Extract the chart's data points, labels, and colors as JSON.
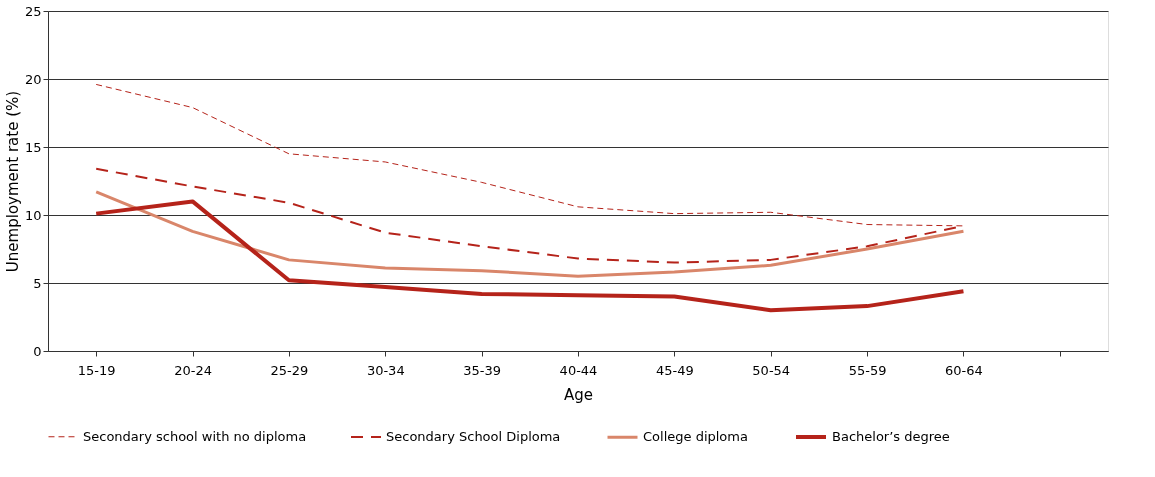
{
  "chart_data": {
    "type": "line",
    "xlabel": "Age",
    "ylabel": "Unemployment rate (%)",
    "categories": [
      "15-19",
      "20-24",
      "25-29",
      "30-34",
      "35-39",
      "40-44",
      "45-49",
      "50-54",
      "55-59",
      "60-64",
      null
    ],
    "series": [
      {
        "name": "Secondary school with no diploma",
        "color": "#b5231a",
        "line_style": "dashed",
        "values": [
          19.6,
          17.9,
          14.5,
          13.9,
          12.4,
          10.6,
          10.1,
          10.2,
          9.3,
          9.2,
          null
        ]
      },
      {
        "name": "Secondary School Diploma",
        "color": "#b5231a",
        "line_style": "dashed",
        "values": [
          13.4,
          12.1,
          10.9,
          8.7,
          7.7,
          6.8,
          6.5,
          6.7,
          7.7,
          9.2,
          null
        ]
      },
      {
        "name": "College diploma",
        "color": "#d9866a",
        "line_style": "solid",
        "values": [
          11.7,
          8.8,
          6.7,
          6.1,
          5.9,
          5.5,
          5.8,
          6.3,
          7.5,
          8.8,
          null
        ]
      },
      {
        "name": "Bachelor’s degree",
        "color": "#b5231a",
        "line_style": "solid",
        "values": [
          10.1,
          11.0,
          5.2,
          4.7,
          4.2,
          4.1,
          4.0,
          3.0,
          3.3,
          4.4,
          null
        ]
      }
    ],
    "ylim": [
      0,
      25
    ],
    "yticks": [
      0,
      5,
      10,
      15,
      20,
      25
    ],
    "grid": "y",
    "legend": "bottom",
    "marker": "none"
  }
}
